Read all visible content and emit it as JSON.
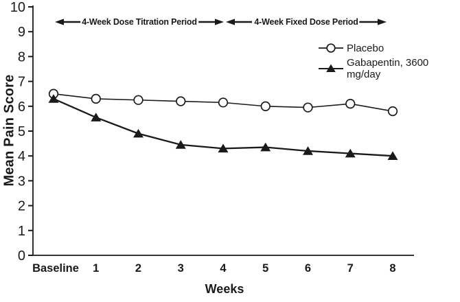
{
  "chart_data": {
    "type": "line",
    "title": "",
    "xlabel": "Weeks",
    "ylabel": "Mean Pain Score",
    "ylim": [
      0,
      10
    ],
    "yticks": [
      0,
      1,
      2,
      3,
      4,
      5,
      6,
      7,
      8,
      9,
      10
    ],
    "categories": [
      "Baseline",
      "1",
      "2",
      "3",
      "4",
      "5",
      "6",
      "7",
      "8"
    ],
    "series": [
      {
        "name": "Placebo",
        "marker": "open-circle",
        "values": [
          6.5,
          6.3,
          6.25,
          6.2,
          6.15,
          6.0,
          5.95,
          6.1,
          5.8
        ]
      },
      {
        "name": "Gabapentin, 3600 mg/day",
        "marker": "filled-triangle",
        "values": [
          6.3,
          5.55,
          4.9,
          4.45,
          4.3,
          4.35,
          4.2,
          4.1,
          4.0
        ]
      }
    ],
    "annotations": [
      {
        "label": "4-Week Dose Titration Period",
        "span_categories": [
          "Baseline",
          "4"
        ],
        "style": "double-headed-arrow"
      },
      {
        "label": "4-Week Fixed Dose Period",
        "span_categories": [
          "4",
          "8"
        ],
        "style": "double-headed-arrow"
      }
    ],
    "legend_position": "upper-right",
    "grid": false,
    "colors": {
      "line": "#1a1a1a",
      "marker_fill_open": "#ffffff",
      "background": "#ffffff"
    }
  }
}
